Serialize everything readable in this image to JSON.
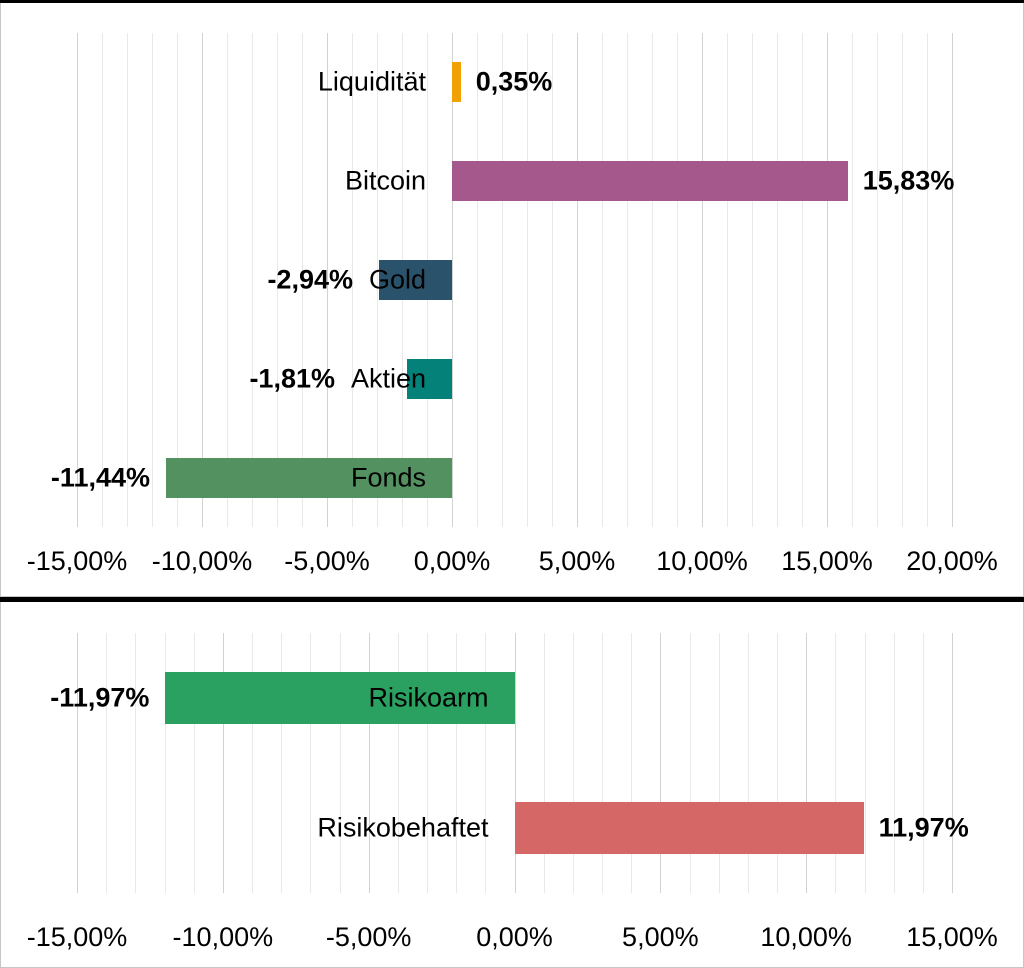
{
  "figure": {
    "background": "#ffffff",
    "frame_color": "#000000",
    "panel_border_color": "#c6c6c6"
  },
  "chart_data": [
    {
      "type": "bar",
      "orientation": "horizontal",
      "title": "",
      "legend": "none",
      "categories": [
        "Liquidität",
        "Bitcoin",
        "Gold",
        "Aktien",
        "Fonds"
      ],
      "values": [
        0.35,
        15.83,
        -2.94,
        -1.81,
        -11.44
      ],
      "value_labels": [
        "0,35%",
        "15,83%",
        "-2,94%",
        "-1,81%",
        "-11,44%"
      ],
      "bar_colors": [
        "#F2A104",
        "#A4588C",
        "#2A536B",
        "#048179",
        "#549161"
      ],
      "xlim": [
        -15,
        20
      ],
      "x_ticks": [
        -15,
        -10,
        -5,
        0,
        5,
        10,
        15,
        20
      ],
      "x_tick_labels": [
        "-15,00%",
        "-10,00%",
        "-5,00%",
        "0,00%",
        "5,00%",
        "10,00%",
        "15,00%",
        "20,00%"
      ],
      "grid": {
        "show": true,
        "minor_step": 1,
        "major_step": 5,
        "minor_color": "#e9e9e9",
        "major_color": "#d2d2d2"
      }
    },
    {
      "type": "bar",
      "orientation": "horizontal",
      "title": "",
      "legend": "none",
      "categories": [
        "Risikoarm",
        "Risikobehaftet"
      ],
      "values": [
        -11.97,
        11.97
      ],
      "value_labels": [
        "-11,97%",
        "11,97%"
      ],
      "bar_colors": [
        "#2AA160",
        "#D56867"
      ],
      "xlim": [
        -15,
        15
      ],
      "x_ticks": [
        -15,
        -10,
        -5,
        0,
        5,
        10,
        15
      ],
      "x_tick_labels": [
        "-15,00%",
        "-10,00%",
        "-5,00%",
        "0,00%",
        "5,00%",
        "10,00%",
        "15,00%"
      ],
      "grid": {
        "show": true,
        "minor_step": 1,
        "major_step": 5,
        "minor_color": "#e9e9e9",
        "major_color": "#d2d2d2"
      }
    }
  ]
}
